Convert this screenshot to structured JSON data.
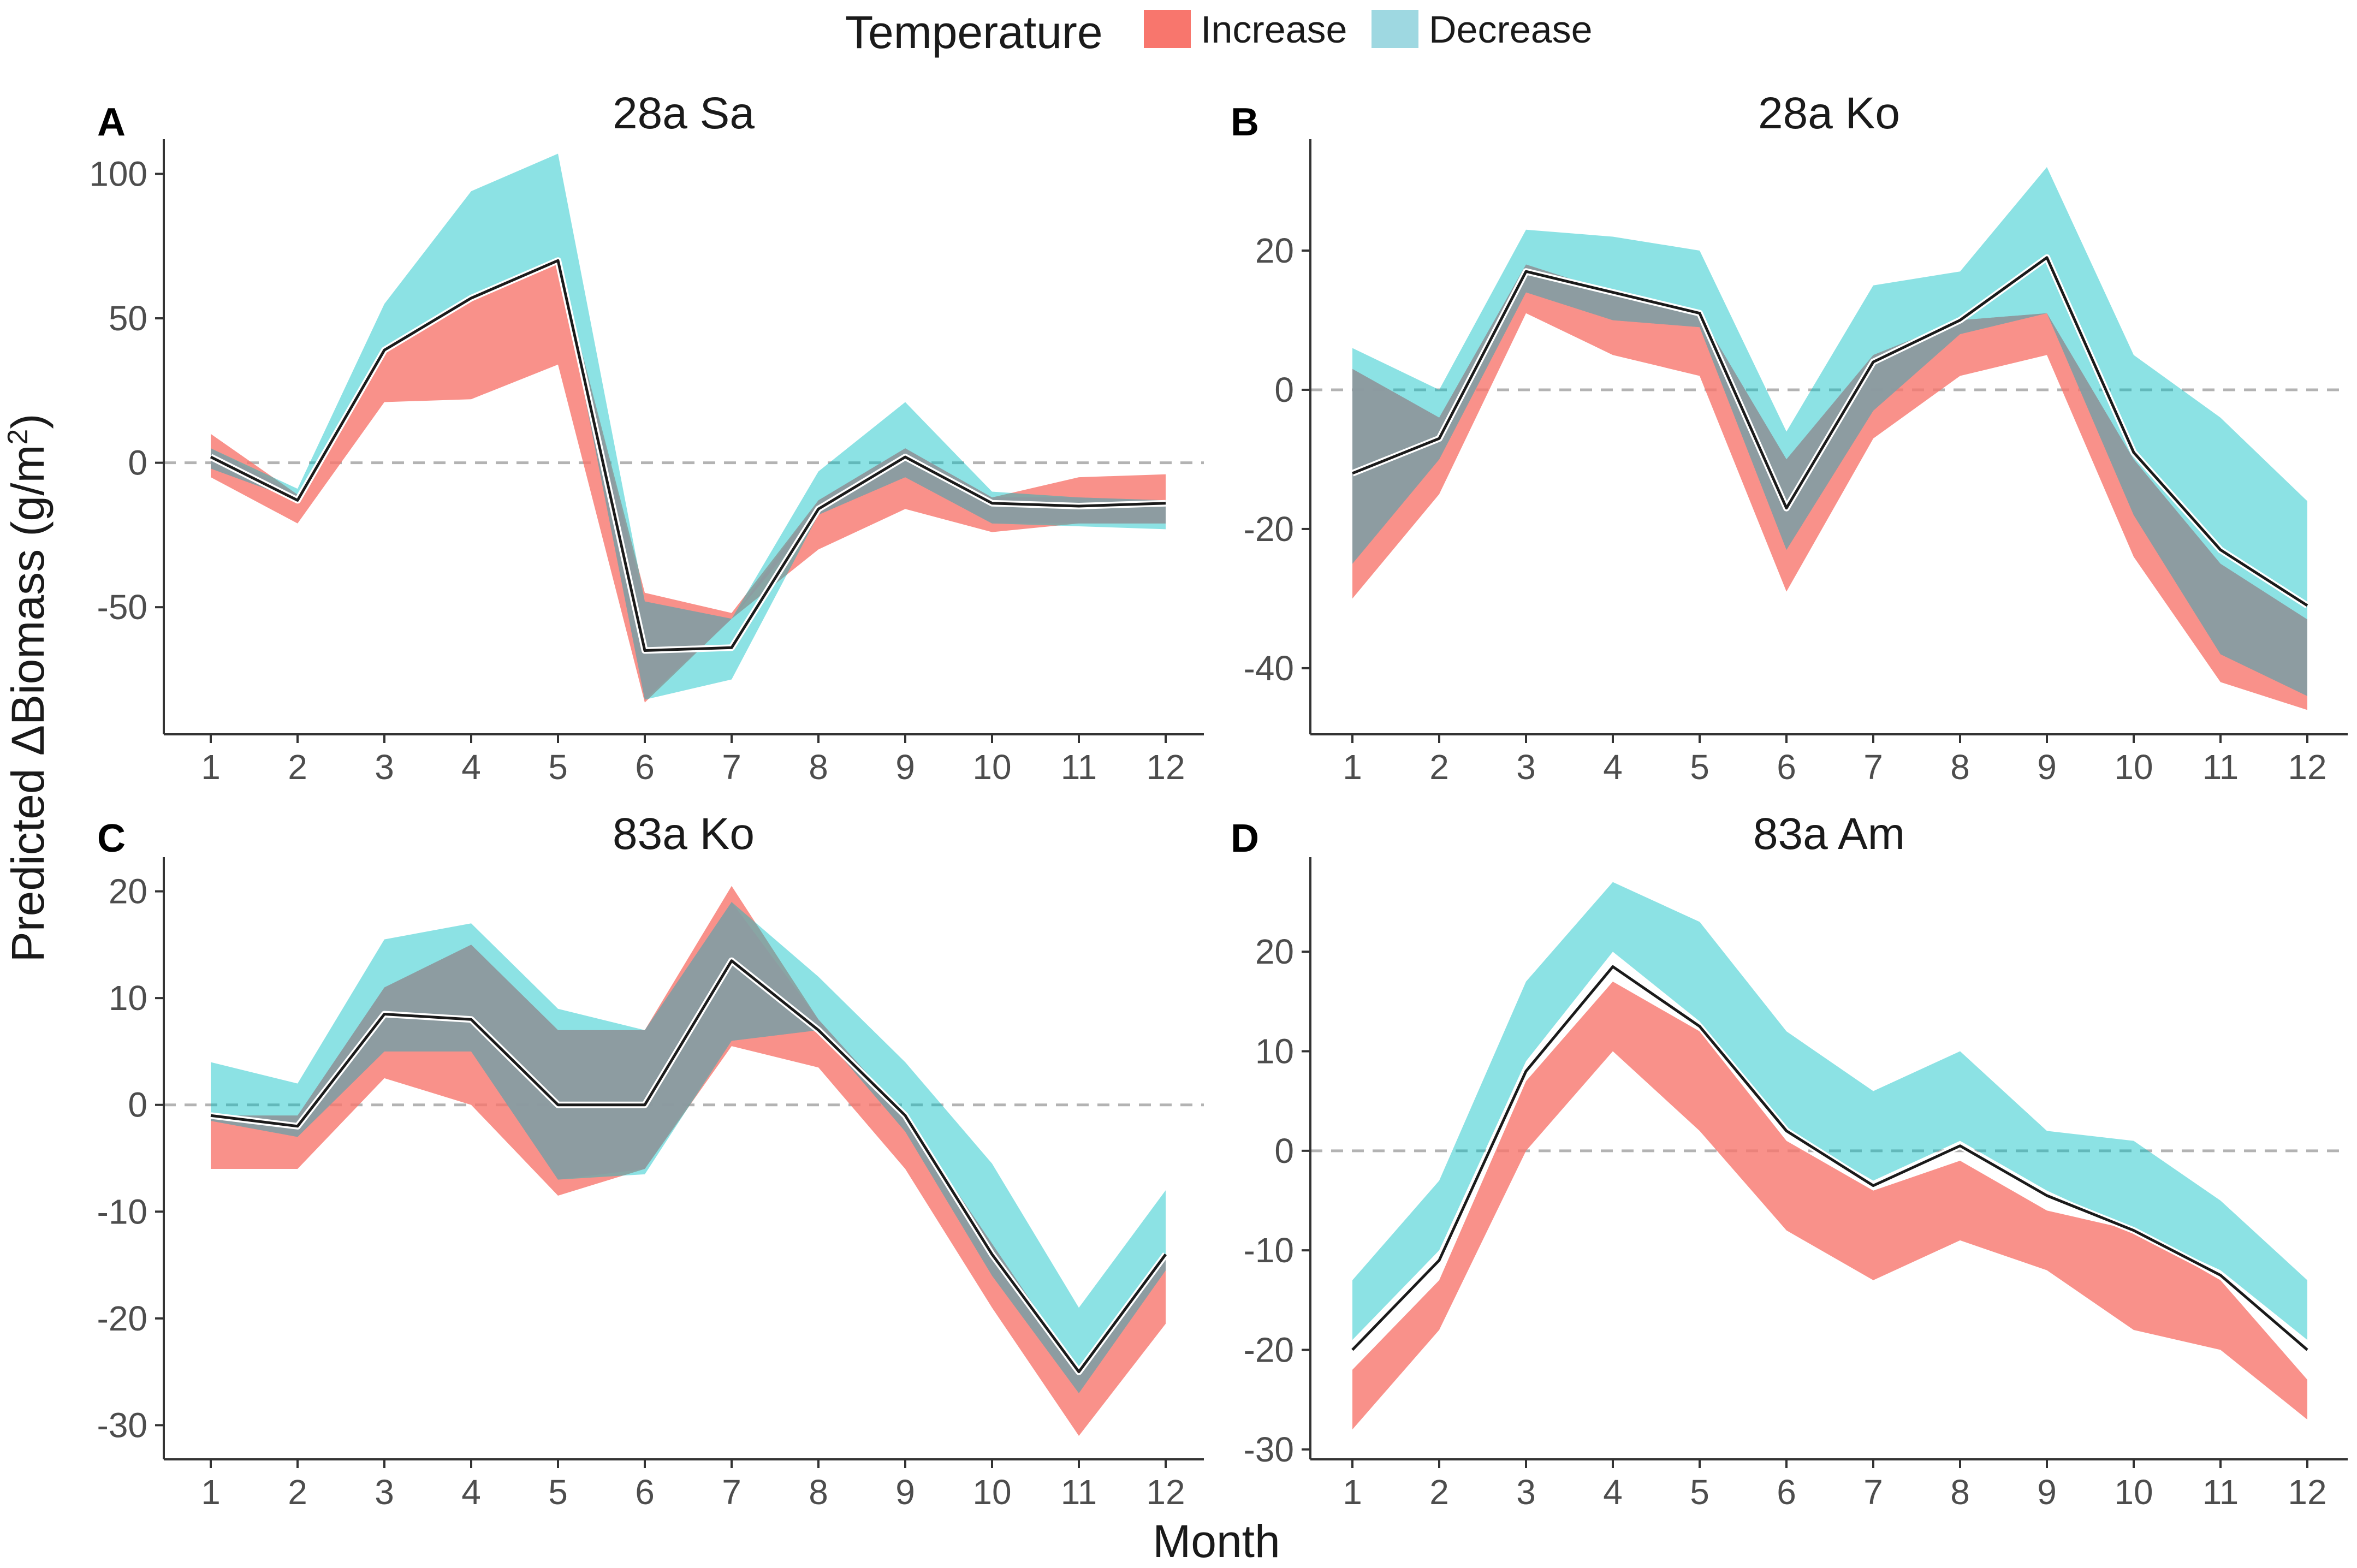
{
  "legend": {
    "title": "Temperature",
    "items": [
      {
        "label": "Increase",
        "color": "#F8766D"
      },
      {
        "label": "Decrease",
        "color": "#00BFC4"
      }
    ]
  },
  "xlabel": "Month",
  "ylabel_prefix": "Predicted ΔBiomass (g/m",
  "ylabel_sup": "2",
  "ylabel_suffix": ")",
  "colors": {
    "increase": "#F8766D",
    "decrease": "#00BFC4",
    "overlap": "#8E9AA1",
    "line": "#1a1a1a",
    "zero_line": "#b3b3b3",
    "axis": "#333333"
  },
  "chart_data": [
    {
      "tag": "A",
      "title": "28a Sa",
      "type": "area",
      "x": [
        1,
        2,
        3,
        4,
        5,
        6,
        7,
        8,
        9,
        10,
        11,
        12
      ],
      "ylim": [
        -94,
        112
      ],
      "yticks": [
        -50,
        0,
        50,
        100
      ],
      "yticklabels": [
        "-50",
        "0",
        "50",
        "100"
      ],
      "series": [
        {
          "name": "Increase",
          "lower": [
            -5,
            -21,
            21,
            22,
            34,
            -83,
            -54,
            -30,
            -16,
            -24,
            -21,
            -21
          ],
          "upper": [
            10,
            -11,
            40,
            58,
            70,
            -45,
            -52,
            -13,
            5,
            -12,
            -5,
            -4
          ]
        },
        {
          "name": "Decrease",
          "lower": [
            -2,
            -13,
            40,
            58,
            70,
            -82,
            -75,
            -18,
            -5,
            -21,
            -22,
            -23
          ],
          "upper": [
            5,
            -9,
            55,
            94,
            107,
            -48,
            -54,
            -3,
            21,
            -10,
            -12,
            -13
          ]
        },
        {
          "name": "Mean",
          "values": [
            2,
            -13,
            39,
            57,
            70,
            -65,
            -64,
            -16,
            2,
            -14,
            -15,
            -14
          ]
        }
      ]
    },
    {
      "tag": "B",
      "title": "28a Ko",
      "type": "area",
      "x": [
        1,
        2,
        3,
        4,
        5,
        6,
        7,
        8,
        9,
        10,
        11,
        12
      ],
      "ylim": [
        -49.5,
        36
      ],
      "yticks": [
        -40,
        -20,
        0,
        20
      ],
      "yticklabels": [
        "-40",
        "-20",
        "0",
        "20"
      ],
      "series": [
        {
          "name": "Increase",
          "lower": [
            -30,
            -15,
            11,
            5,
            2,
            -29,
            -7,
            2,
            5,
            -24,
            -42,
            -46
          ],
          "upper": [
            3,
            -4,
            18,
            14,
            11,
            -10,
            5,
            10,
            11,
            -10,
            -25,
            -33
          ]
        },
        {
          "name": "Decrease",
          "lower": [
            -25,
            -10,
            14,
            10,
            9,
            -23,
            -3,
            8,
            11,
            -18,
            -38,
            -44
          ],
          "upper": [
            6,
            0,
            23,
            22,
            20,
            -6,
            15,
            17,
            32,
            5,
            -4,
            -16
          ]
        },
        {
          "name": "Mean",
          "values": [
            -12,
            -7,
            17,
            14,
            11,
            -17,
            4,
            10,
            19,
            -9,
            -23,
            -31
          ]
        }
      ]
    },
    {
      "tag": "C",
      "title": "83a Ko",
      "type": "area",
      "x": [
        1,
        2,
        3,
        4,
        5,
        6,
        7,
        8,
        9,
        10,
        11,
        12
      ],
      "ylim": [
        -33.2,
        23.2
      ],
      "yticks": [
        -30,
        -20,
        -10,
        0,
        10,
        20
      ],
      "yticklabels": [
        "-30",
        "-20",
        "-10",
        "0",
        "10",
        "20"
      ],
      "series": [
        {
          "name": "Increase",
          "lower": [
            -6,
            -6,
            2.5,
            0,
            -8.5,
            -6,
            5.5,
            3.5,
            -6,
            -19,
            -31,
            -20.5
          ],
          "upper": [
            -1,
            -1,
            11,
            15,
            7,
            7,
            20.5,
            8,
            -1,
            -13,
            -25,
            -14
          ]
        },
        {
          "name": "Decrease",
          "lower": [
            -1.5,
            -3,
            5,
            5,
            -7,
            -6.5,
            6,
            7,
            -2.5,
            -16,
            -27,
            -15.5
          ],
          "upper": [
            4,
            2,
            15.5,
            17,
            9,
            7,
            19,
            12,
            4,
            -5.5,
            -19,
            -8
          ]
        },
        {
          "name": "Mean",
          "values": [
            -1,
            -2,
            8.5,
            8,
            0,
            0,
            13.5,
            7,
            -1,
            -14,
            -25,
            -14
          ]
        }
      ]
    },
    {
      "tag": "D",
      "title": "83a Am",
      "type": "area",
      "x": [
        1,
        2,
        3,
        4,
        5,
        6,
        7,
        8,
        9,
        10,
        11,
        12
      ],
      "ylim": [
        -31,
        29.5
      ],
      "yticks": [
        -30,
        -20,
        -10,
        0,
        10,
        20
      ],
      "yticklabels": [
        "-30",
        "-20",
        "-10",
        "0",
        "10",
        "20"
      ],
      "series": [
        {
          "name": "Increase",
          "lower": [
            -28,
            -18,
            0,
            10,
            2,
            -8,
            -13,
            -9,
            -12,
            -18,
            -20,
            -27
          ],
          "upper": [
            -22,
            -13,
            7,
            17,
            12,
            1,
            -4,
            -1,
            -6,
            -8,
            -13,
            -23
          ]
        },
        {
          "name": "Decrease",
          "lower": [
            -19,
            -10,
            9,
            20,
            13,
            2,
            -3,
            1,
            -4,
            -8,
            -12,
            -19
          ],
          "upper": [
            -13,
            -3,
            17,
            27,
            23,
            12,
            6,
            10,
            2,
            1,
            -5,
            -13
          ]
        },
        {
          "name": "Mean",
          "values": [
            -20,
            -11,
            8,
            18.5,
            12.5,
            2,
            -3.5,
            0.5,
            -4.5,
            -8,
            -12.5,
            -20
          ]
        }
      ]
    }
  ]
}
